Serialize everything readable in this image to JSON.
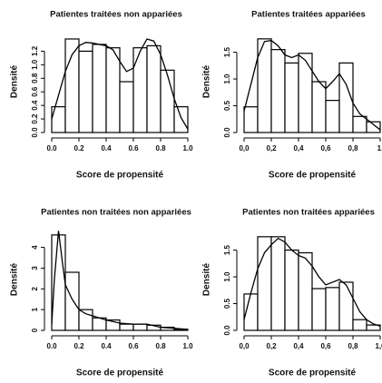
{
  "chart_data": [
    {
      "type": "histogram",
      "title": "Patientes traitées non appariées",
      "x_label": "Score de propensité",
      "y_label": "Densité",
      "bins": [
        0,
        0.1,
        0.2,
        0.3,
        0.4,
        0.5,
        0.6,
        0.7,
        0.8,
        0.9,
        1.0
      ],
      "values": [
        0.38,
        1.38,
        1.2,
        1.3,
        1.25,
        0.75,
        1.25,
        1.28,
        0.92,
        0.38
      ],
      "curve": {
        "x": [
          0,
          0.05,
          0.1,
          0.15,
          0.2,
          0.25,
          0.3,
          0.35,
          0.4,
          0.45,
          0.5,
          0.55,
          0.6,
          0.65,
          0.7,
          0.75,
          0.8,
          0.85,
          0.9,
          0.95,
          1.0
        ],
        "values": [
          0.2,
          0.55,
          0.9,
          1.15,
          1.28,
          1.33,
          1.32,
          1.3,
          1.28,
          1.22,
          1.05,
          0.9,
          0.95,
          1.2,
          1.38,
          1.35,
          1.15,
          0.85,
          0.5,
          0.22,
          0.05
        ]
      },
      "xlim": [
        0,
        1.0
      ],
      "ylim": [
        0,
        1.5
      ],
      "xticks": [
        {
          "value": 0,
          "label": "0.0"
        },
        0.2,
        0.4,
        0.6,
        0.8,
        {
          "value": 1,
          "label": "1.0"
        }
      ],
      "yticks": [
        {
          "value": 0,
          "label": "0.0"
        },
        0.2,
        0.4,
        0.6,
        0.8,
        {
          "value": 1,
          "label": "1.0"
        },
        1.2
      ]
    },
    {
      "type": "histogram",
      "title": "Patientes traitées appariées",
      "x_label": "Score de propensité",
      "y_label": "Densité",
      "bins": [
        0,
        0.1,
        0.2,
        0.3,
        0.4,
        0.5,
        0.6,
        0.7,
        0.8,
        0.9,
        1.0
      ],
      "values": [
        0.48,
        1.75,
        1.55,
        1.3,
        1.48,
        0.95,
        0.6,
        1.3,
        0.3,
        0.2
      ],
      "curve": {
        "x": [
          0,
          0.05,
          0.1,
          0.15,
          0.2,
          0.25,
          0.3,
          0.35,
          0.4,
          0.45,
          0.5,
          0.55,
          0.6,
          0.65,
          0.7,
          0.75,
          0.8,
          0.85,
          0.9,
          0.95,
          1.0
        ],
        "values": [
          0.4,
          0.9,
          1.4,
          1.7,
          1.72,
          1.62,
          1.45,
          1.4,
          1.45,
          1.35,
          1.15,
          0.95,
          0.82,
          0.95,
          1.1,
          0.9,
          0.55,
          0.35,
          0.25,
          0.15,
          0.05
        ]
      },
      "xlim": [
        0,
        1.0
      ],
      "ylim": [
        0,
        1.9
      ],
      "xticks": [
        {
          "value": 0,
          "label": "0,0"
        },
        {
          "value": 0.2,
          "label": "0,2"
        },
        {
          "value": 0.4,
          "label": "0,4"
        },
        {
          "value": 0.6,
          "label": "0,6"
        },
        {
          "value": 0.8,
          "label": "0,8"
        },
        {
          "value": 1,
          "label": "1,"
        }
      ],
      "yticks": [
        {
          "value": 0,
          "label": "0.0"
        },
        0.5,
        {
          "value": 1,
          "label": "1.0"
        },
        1.5
      ]
    },
    {
      "type": "histogram",
      "title": "Patientes non traitées non appariées",
      "x_label": "Score de propensité",
      "y_label": "Densité",
      "bins": [
        0,
        0.1,
        0.2,
        0.3,
        0.4,
        0.5,
        0.6,
        0.7,
        0.8,
        0.9,
        1.0
      ],
      "values": [
        4.6,
        2.8,
        1.0,
        0.6,
        0.5,
        0.3,
        0.3,
        0.25,
        0.15,
        0.05
      ],
      "curve": {
        "x": [
          0,
          0.02,
          0.05,
          0.08,
          0.1,
          0.15,
          0.2,
          0.25,
          0.3,
          0.4,
          0.5,
          0.6,
          0.7,
          0.8,
          0.9,
          1.0
        ],
        "values": [
          0.3,
          2.5,
          4.8,
          3.2,
          2.2,
          1.5,
          1.0,
          0.8,
          0.7,
          0.5,
          0.35,
          0.3,
          0.3,
          0.15,
          0.1,
          0.05
        ]
      },
      "xlim": [
        0,
        1.0
      ],
      "ylim": [
        0,
        4.9
      ],
      "xticks": [
        {
          "value": 0,
          "label": "0.0"
        },
        0.2,
        0.4,
        0.6,
        0.8,
        {
          "value": 1,
          "label": "1.0"
        }
      ],
      "yticks": [
        0,
        1,
        2,
        3,
        4
      ]
    },
    {
      "type": "histogram",
      "title": "Patientes non traitées appariées",
      "x_label": "Score de propensité",
      "y_label": "Densité",
      "bins": [
        0,
        0.1,
        0.2,
        0.3,
        0.4,
        0.5,
        0.6,
        0.7,
        0.8,
        0.9,
        1.0
      ],
      "values": [
        0.68,
        1.75,
        1.75,
        1.5,
        1.45,
        0.78,
        0.8,
        0.9,
        0.2,
        0.1
      ],
      "curve": {
        "x": [
          0,
          0.05,
          0.1,
          0.15,
          0.2,
          0.25,
          0.3,
          0.35,
          0.4,
          0.45,
          0.5,
          0.55,
          0.6,
          0.65,
          0.7,
          0.75,
          0.8,
          0.85,
          0.9,
          0.95,
          1.0
        ],
        "values": [
          0.2,
          0.7,
          1.15,
          1.45,
          1.6,
          1.72,
          1.65,
          1.5,
          1.4,
          1.35,
          1.2,
          1.0,
          0.85,
          0.9,
          0.95,
          0.85,
          0.6,
          0.35,
          0.2,
          0.12,
          0.08
        ]
      },
      "xlim": [
        0,
        1.0
      ],
      "ylim": [
        0,
        1.9
      ],
      "xticks": [
        {
          "value": 0,
          "label": "0,0"
        },
        {
          "value": 0.2,
          "label": "0,2"
        },
        {
          "value": 0.4,
          "label": "0,4"
        },
        {
          "value": 0.6,
          "label": "0,6"
        },
        {
          "value": 0.8,
          "label": "0,8"
        },
        {
          "value": 1,
          "label": "1,0"
        }
      ],
      "yticks": [
        {
          "value": 0,
          "label": "0.0"
        },
        0.5,
        {
          "value": 1,
          "label": "1.0"
        },
        1.5
      ]
    }
  ]
}
